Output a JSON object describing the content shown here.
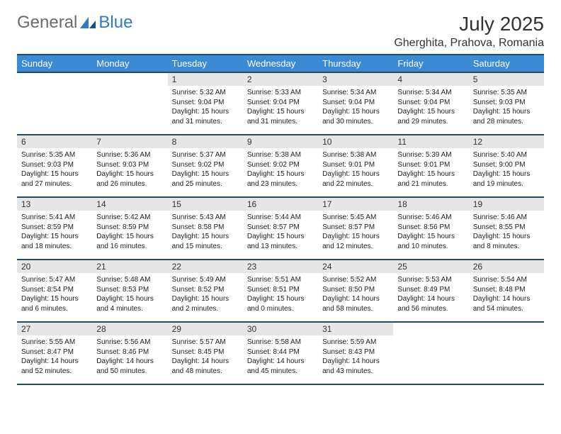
{
  "brand": {
    "part1": "General",
    "part2": "Blue"
  },
  "title": "July 2025",
  "location": "Gherghita, Prahova, Romania",
  "header_bg": "#3b8bd4",
  "border_color": "#234a6b",
  "daynum_bg": "#e6e6e6",
  "weekdays": [
    "Sunday",
    "Monday",
    "Tuesday",
    "Wednesday",
    "Thursday",
    "Friday",
    "Saturday"
  ],
  "weeks": [
    [
      null,
      null,
      {
        "n": "1",
        "sr": "5:32 AM",
        "ss": "9:04 PM",
        "dl": "15 hours and 31 minutes."
      },
      {
        "n": "2",
        "sr": "5:33 AM",
        "ss": "9:04 PM",
        "dl": "15 hours and 31 minutes."
      },
      {
        "n": "3",
        "sr": "5:34 AM",
        "ss": "9:04 PM",
        "dl": "15 hours and 30 minutes."
      },
      {
        "n": "4",
        "sr": "5:34 AM",
        "ss": "9:04 PM",
        "dl": "15 hours and 29 minutes."
      },
      {
        "n": "5",
        "sr": "5:35 AM",
        "ss": "9:03 PM",
        "dl": "15 hours and 28 minutes."
      }
    ],
    [
      {
        "n": "6",
        "sr": "5:35 AM",
        "ss": "9:03 PM",
        "dl": "15 hours and 27 minutes."
      },
      {
        "n": "7",
        "sr": "5:36 AM",
        "ss": "9:03 PM",
        "dl": "15 hours and 26 minutes."
      },
      {
        "n": "8",
        "sr": "5:37 AM",
        "ss": "9:02 PM",
        "dl": "15 hours and 25 minutes."
      },
      {
        "n": "9",
        "sr": "5:38 AM",
        "ss": "9:02 PM",
        "dl": "15 hours and 23 minutes."
      },
      {
        "n": "10",
        "sr": "5:38 AM",
        "ss": "9:01 PM",
        "dl": "15 hours and 22 minutes."
      },
      {
        "n": "11",
        "sr": "5:39 AM",
        "ss": "9:01 PM",
        "dl": "15 hours and 21 minutes."
      },
      {
        "n": "12",
        "sr": "5:40 AM",
        "ss": "9:00 PM",
        "dl": "15 hours and 19 minutes."
      }
    ],
    [
      {
        "n": "13",
        "sr": "5:41 AM",
        "ss": "8:59 PM",
        "dl": "15 hours and 18 minutes."
      },
      {
        "n": "14",
        "sr": "5:42 AM",
        "ss": "8:59 PM",
        "dl": "15 hours and 16 minutes."
      },
      {
        "n": "15",
        "sr": "5:43 AM",
        "ss": "8:58 PM",
        "dl": "15 hours and 15 minutes."
      },
      {
        "n": "16",
        "sr": "5:44 AM",
        "ss": "8:57 PM",
        "dl": "15 hours and 13 minutes."
      },
      {
        "n": "17",
        "sr": "5:45 AM",
        "ss": "8:57 PM",
        "dl": "15 hours and 12 minutes."
      },
      {
        "n": "18",
        "sr": "5:46 AM",
        "ss": "8:56 PM",
        "dl": "15 hours and 10 minutes."
      },
      {
        "n": "19",
        "sr": "5:46 AM",
        "ss": "8:55 PM",
        "dl": "15 hours and 8 minutes."
      }
    ],
    [
      {
        "n": "20",
        "sr": "5:47 AM",
        "ss": "8:54 PM",
        "dl": "15 hours and 6 minutes."
      },
      {
        "n": "21",
        "sr": "5:48 AM",
        "ss": "8:53 PM",
        "dl": "15 hours and 4 minutes."
      },
      {
        "n": "22",
        "sr": "5:49 AM",
        "ss": "8:52 PM",
        "dl": "15 hours and 2 minutes."
      },
      {
        "n": "23",
        "sr": "5:51 AM",
        "ss": "8:51 PM",
        "dl": "15 hours and 0 minutes."
      },
      {
        "n": "24",
        "sr": "5:52 AM",
        "ss": "8:50 PM",
        "dl": "14 hours and 58 minutes."
      },
      {
        "n": "25",
        "sr": "5:53 AM",
        "ss": "8:49 PM",
        "dl": "14 hours and 56 minutes."
      },
      {
        "n": "26",
        "sr": "5:54 AM",
        "ss": "8:48 PM",
        "dl": "14 hours and 54 minutes."
      }
    ],
    [
      {
        "n": "27",
        "sr": "5:55 AM",
        "ss": "8:47 PM",
        "dl": "14 hours and 52 minutes."
      },
      {
        "n": "28",
        "sr": "5:56 AM",
        "ss": "8:46 PM",
        "dl": "14 hours and 50 minutes."
      },
      {
        "n": "29",
        "sr": "5:57 AM",
        "ss": "8:45 PM",
        "dl": "14 hours and 48 minutes."
      },
      {
        "n": "30",
        "sr": "5:58 AM",
        "ss": "8:44 PM",
        "dl": "14 hours and 45 minutes."
      },
      {
        "n": "31",
        "sr": "5:59 AM",
        "ss": "8:43 PM",
        "dl": "14 hours and 43 minutes."
      },
      null,
      null
    ]
  ],
  "labels": {
    "sunrise": "Sunrise:",
    "sunset": "Sunset:",
    "daylight": "Daylight:"
  }
}
